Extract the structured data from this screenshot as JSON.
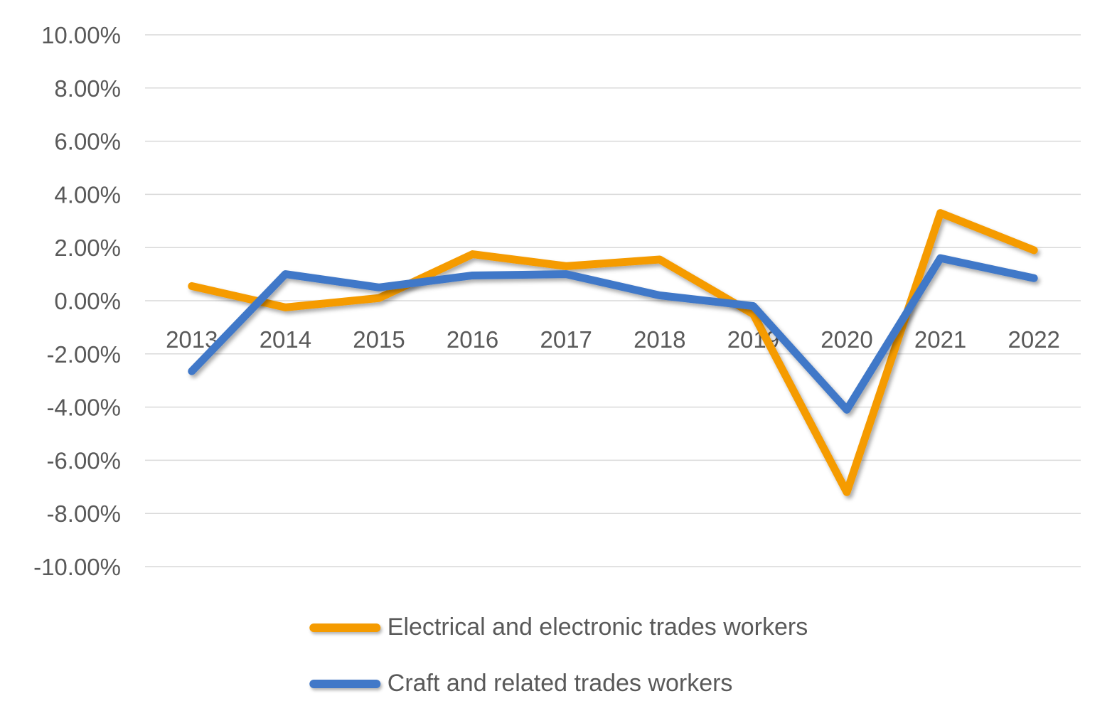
{
  "chart_data": {
    "type": "line",
    "categories": [
      "2013",
      "2014",
      "2015",
      "2016",
      "2017",
      "2018",
      "2019",
      "2020",
      "2021",
      "2022"
    ],
    "series": [
      {
        "name": "Electrical and electronic trades workers",
        "color": "#F59B00",
        "values": [
          0.55,
          -0.25,
          0.1,
          1.75,
          1.3,
          1.55,
          -0.5,
          -7.2,
          3.3,
          1.9
        ]
      },
      {
        "name": "Craft and related trades workers",
        "color": "#4178C8",
        "values": [
          -2.65,
          1.0,
          0.5,
          0.95,
          1.0,
          0.2,
          -0.2,
          -4.1,
          1.6,
          0.85
        ]
      }
    ],
    "ylim": [
      -10,
      10
    ],
    "y_ticks": [
      {
        "value": 10,
        "label": "10.00%"
      },
      {
        "value": 8,
        "label": "8.00%"
      },
      {
        "value": 6,
        "label": "6.00%"
      },
      {
        "value": 4,
        "label": "4.00%"
      },
      {
        "value": 2,
        "label": "2.00%"
      },
      {
        "value": 0,
        "label": "0.00%"
      },
      {
        "value": -2,
        "label": "-2.00%"
      },
      {
        "value": -4,
        "label": "-4.00%"
      },
      {
        "value": -6,
        "label": "-6.00%"
      },
      {
        "value": -8,
        "label": "-8.00%"
      },
      {
        "value": -10,
        "label": "-10.00%"
      }
    ],
    "grid": true,
    "x_labels_position": "just-below-zero-line",
    "legend_position": "bottom-center"
  },
  "colors": {
    "text": "#595959",
    "gridline": "#D9D9D9",
    "background": "#FFFFFF"
  }
}
